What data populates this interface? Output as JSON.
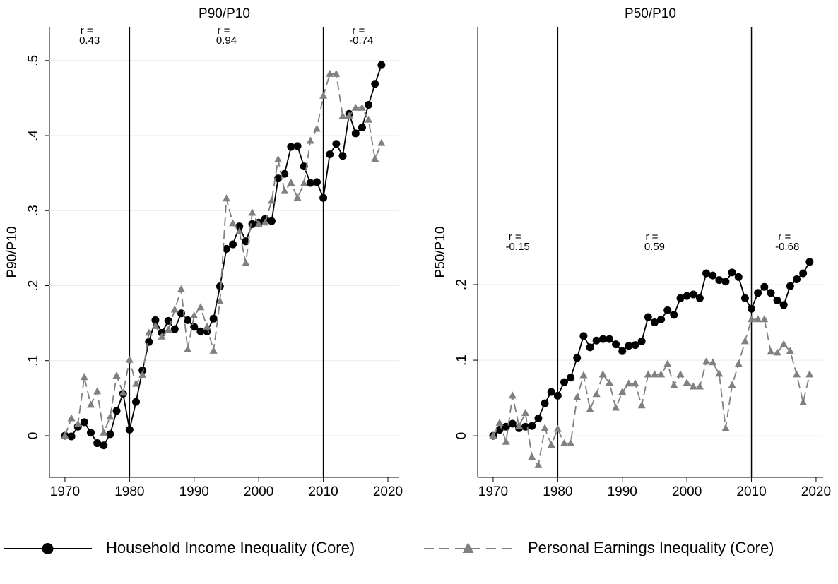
{
  "chart_data": [
    {
      "type": "line",
      "title": "P90/P10",
      "y_label": "P90/P10",
      "x": [
        1970,
        1971,
        1972,
        1973,
        1974,
        1975,
        1976,
        1977,
        1978,
        1979,
        1980,
        1981,
        1982,
        1983,
        1984,
        1985,
        1986,
        1987,
        1988,
        1989,
        1990,
        1991,
        1992,
        1993,
        1994,
        1995,
        1996,
        1997,
        1998,
        1999,
        2000,
        2001,
        2002,
        2003,
        2004,
        2005,
        2006,
        2007,
        2008,
        2009,
        2010,
        2011,
        2012,
        2013,
        2014,
        2015,
        2016,
        2017,
        2018,
        2019
      ],
      "series": [
        {
          "name": "Household Income Inequality (Core)",
          "color": "#000000",
          "marker": "circle",
          "dash": "solid",
          "values": [
            0.0,
            -0.001,
            0.012,
            0.018,
            0.004,
            -0.01,
            -0.013,
            0.002,
            0.033,
            0.056,
            0.008,
            0.045,
            0.087,
            0.125,
            0.154,
            0.137,
            0.153,
            0.142,
            0.163,
            0.154,
            0.145,
            0.139,
            0.139,
            0.156,
            0.199,
            0.249,
            0.255,
            0.279,
            0.259,
            0.282,
            0.284,
            0.289,
            0.286,
            0.343,
            0.349,
            0.385,
            0.386,
            0.359,
            0.337,
            0.338,
            0.317,
            0.375,
            0.389,
            0.373,
            0.429,
            0.403,
            0.411,
            0.441,
            0.469,
            0.494
          ]
        },
        {
          "name": "Personal Earnings Inequality (Core)",
          "color": "#808080",
          "marker": "triangle",
          "dash": "dashed",
          "values": [
            0.0,
            0.023,
            0.015,
            0.078,
            0.041,
            0.059,
            0.004,
            0.025,
            0.08,
            0.057,
            0.101,
            0.069,
            0.081,
            0.137,
            0.146,
            0.132,
            0.141,
            0.168,
            0.195,
            0.115,
            0.16,
            0.171,
            0.145,
            0.113,
            0.179,
            0.316,
            0.283,
            0.272,
            0.23,
            0.297,
            0.282,
            0.284,
            0.313,
            0.368,
            0.326,
            0.337,
            0.317,
            0.336,
            0.393,
            0.409,
            0.453,
            0.482,
            0.482,
            0.426,
            0.426,
            0.437,
            0.437,
            0.421,
            0.369,
            0.39
          ]
        }
      ],
      "xlim": [
        1967.6,
        2021.75
      ],
      "xticks": [
        1970,
        1980,
        1990,
        2000,
        2010,
        2020
      ],
      "ylim": [
        -0.0556,
        0.545
      ],
      "yticks": [
        0,
        {
          "value": 0.1,
          "label": ".1"
        },
        {
          "value": 0.2,
          "label": ".2"
        },
        {
          "value": 0.3,
          "label": ".3"
        },
        {
          "value": 0.4,
          "label": ".4"
        },
        {
          "value": 0.5,
          "label": ".5"
        }
      ],
      "grid": true,
      "vlines": [
        1980,
        2010
      ],
      "annotations": [
        {
          "label": "r =",
          "value": 0.43
        },
        {
          "label": "r =",
          "value": 0.94
        },
        {
          "label": "r =",
          "value": -0.74
        }
      ]
    },
    {
      "type": "line",
      "title": "P50/P10",
      "y_label": "P50/P10",
      "x": [
        1970,
        1971,
        1972,
        1973,
        1974,
        1975,
        1976,
        1977,
        1978,
        1979,
        1980,
        1981,
        1982,
        1983,
        1984,
        1985,
        1986,
        1987,
        1988,
        1989,
        1990,
        1991,
        1992,
        1993,
        1994,
        1995,
        1996,
        1997,
        1998,
        1999,
        2000,
        2001,
        2002,
        2003,
        2004,
        2005,
        2006,
        2007,
        2008,
        2009,
        2010,
        2011,
        2012,
        2013,
        2014,
        2015,
        2016,
        2017,
        2018,
        2019
      ],
      "series": [
        {
          "color": "#000000",
          "marker": "circle",
          "dash": "solid",
          "values": [
            0.0,
            0.008,
            0.012,
            0.016,
            0.01,
            0.012,
            0.013,
            0.023,
            0.043,
            0.058,
            0.053,
            0.071,
            0.077,
            0.103,
            0.132,
            0.117,
            0.126,
            0.128,
            0.128,
            0.121,
            0.112,
            0.119,
            0.12,
            0.125,
            0.157,
            0.15,
            0.154,
            0.166,
            0.16,
            0.182,
            0.185,
            0.187,
            0.182,
            0.215,
            0.212,
            0.206,
            0.204,
            0.216,
            0.21,
            0.182,
            0.168,
            0.189,
            0.197,
            0.189,
            0.179,
            0.173,
            0.198,
            0.207,
            0.215,
            0.23
          ]
        },
        {
          "color": "#808080",
          "marker": "triangle",
          "dash": "dashed",
          "values": [
            0.0,
            0.017,
            -0.008,
            0.053,
            0.013,
            0.03,
            -0.028,
            -0.039,
            0.01,
            -0.012,
            0.009,
            -0.01,
            -0.01,
            0.051,
            0.08,
            0.035,
            0.055,
            0.081,
            0.07,
            0.037,
            0.058,
            0.069,
            0.069,
            0.04,
            0.081,
            0.081,
            0.081,
            0.095,
            0.067,
            0.081,
            0.07,
            0.065,
            0.065,
            0.098,
            0.097,
            0.082,
            0.01,
            0.067,
            0.095,
            0.125,
            0.154,
            0.154,
            0.154,
            0.111,
            0.11,
            0.121,
            0.112,
            0.081,
            0.044,
            0.081
          ]
        }
      ],
      "xlim": [
        1967.6,
        2021.1
      ],
      "xticks": [
        1970,
        1980,
        1990,
        2000,
        2010,
        2020
      ],
      "ylim": [
        -0.055,
        0.541
      ],
      "yticks": [
        0,
        {
          "value": 0.1,
          "label": ".1"
        },
        {
          "value": 0.2,
          "label": ".2"
        }
      ],
      "grid": true,
      "vlines": [
        1980,
        2010
      ],
      "annotations": [
        {
          "label": "r =",
          "value": -0.15
        },
        {
          "label": "r =",
          "value": 0.59
        },
        {
          "label": "r =",
          "value": -0.68
        }
      ]
    }
  ]
}
